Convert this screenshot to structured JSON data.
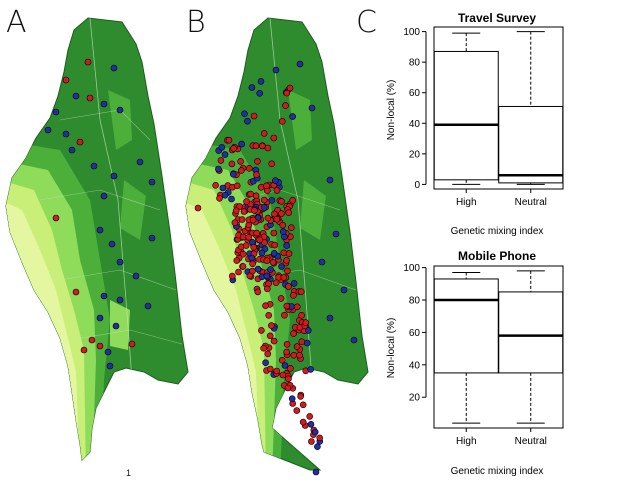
{
  "panels": {
    "a": {
      "letter": "A"
    },
    "b": {
      "letter": "B"
    },
    "c": {
      "letter": "C"
    }
  },
  "map_note": "1",
  "colors": {
    "district_dark": "#2e8b2e",
    "district_mid": "#4caf3a",
    "district_light": "#8fdb5a",
    "coast_pale": "#e4f7a0",
    "dot_red": "#d7191c",
    "dot_blue": "#1f2fa6"
  },
  "chart_data": [
    {
      "type": "box",
      "title": "Travel Survey",
      "xlabel": "Genetic mixing index",
      "ylabel": "Non-local (%)",
      "categories": [
        "High",
        "Neutral"
      ],
      "yticks": [
        0,
        20,
        40,
        60,
        80,
        100
      ],
      "ylim": [
        -3,
        103
      ],
      "boxes": [
        {
          "min": 0,
          "q1": 3,
          "median": 39,
          "q3": 87,
          "max": 99
        },
        {
          "min": 0,
          "q1": 1,
          "median": 6,
          "q3": 51,
          "max": 100
        }
      ]
    },
    {
      "type": "box",
      "title": "Mobile Phone",
      "xlabel": "Genetic mixing index",
      "ylabel": "Non-local (%)",
      "categories": [
        "High",
        "Neutral"
      ],
      "yticks": [
        20,
        40,
        60,
        80,
        100
      ],
      "ylim": [
        1,
        101
      ],
      "boxes": [
        {
          "min": 4,
          "q1": 35,
          "median": 80,
          "q3": 93,
          "max": 97
        },
        {
          "min": 4,
          "q1": 35,
          "median": 58,
          "q3": 85,
          "max": 98
        }
      ]
    }
  ]
}
